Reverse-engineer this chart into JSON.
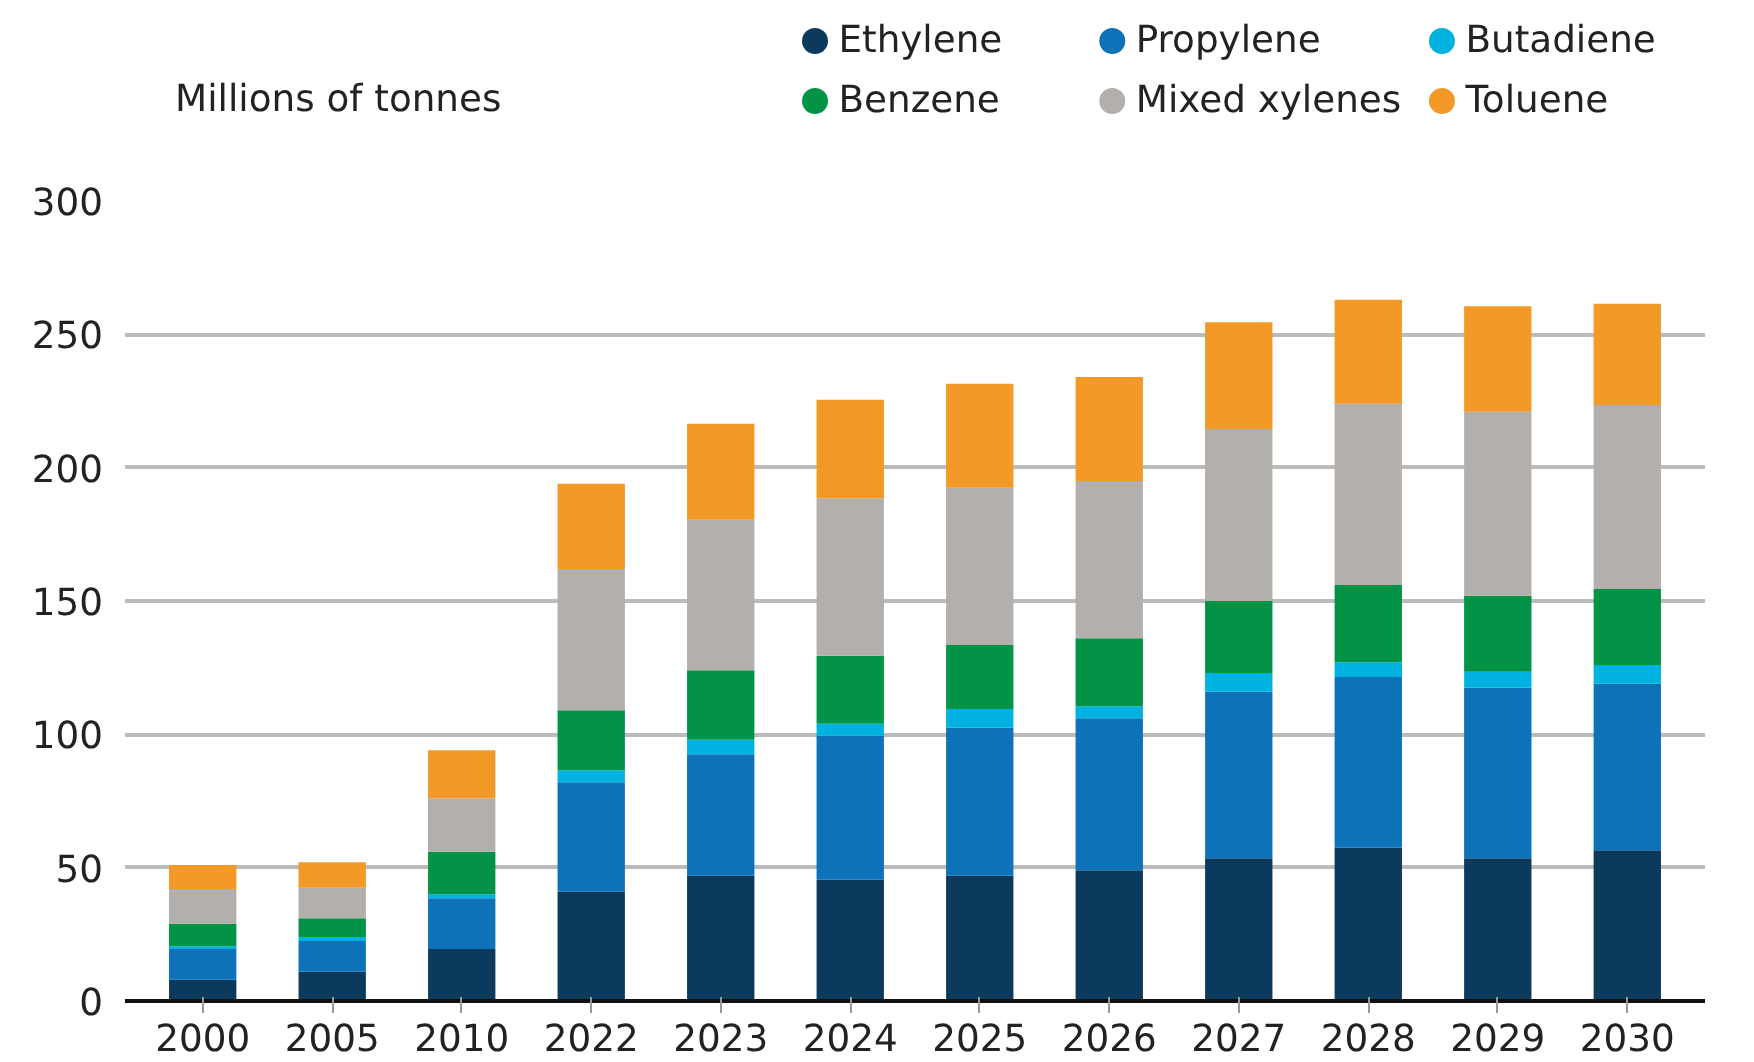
{
  "chart_data": {
    "type": "bar",
    "stacked": true,
    "ylabel": "Millions of tonnes",
    "categories": [
      "2000",
      "2005",
      "2010",
      "2022",
      "2023",
      "2024",
      "2025",
      "2026",
      "2027",
      "2028",
      "2029",
      "2030"
    ],
    "series": [
      {
        "name": "Ethylene",
        "color": "#0b3a5d",
        "values": [
          8,
          11,
          19.5,
          41,
          47,
          45.5,
          47,
          49,
          53.5,
          57.5,
          53.5,
          56.5
        ]
      },
      {
        "name": "Propylene",
        "color": "#0d72b8",
        "values": [
          11.5,
          11.5,
          19,
          41,
          45.5,
          54,
          55.5,
          57,
          62.5,
          64,
          64,
          62.5
        ]
      },
      {
        "name": "Butadiene",
        "color": "#00b2e0",
        "values": [
          1,
          1.5,
          1.5,
          4.5,
          5.5,
          4.5,
          7,
          4.5,
          7,
          5.5,
          6,
          7
        ]
      },
      {
        "name": "Benzene",
        "color": "#029347",
        "values": [
          8.5,
          7,
          16,
          22.5,
          26,
          25.5,
          24,
          25.5,
          27,
          29,
          28.5,
          28.5
        ]
      },
      {
        "name": "Mixed xylenes",
        "color": "#b3afac",
        "values": [
          13,
          11.5,
          20,
          53,
          56.5,
          59,
          59,
          59,
          64.5,
          68,
          69,
          69
        ]
      },
      {
        "name": "Toluene",
        "color": "#f29927",
        "values": [
          9,
          9.5,
          18,
          32,
          36,
          37,
          39,
          39,
          40,
          39,
          39.5,
          38
        ]
      }
    ],
    "ylim": [
      0,
      300
    ],
    "yticks": [
      0,
      50,
      100,
      150,
      200,
      250,
      300
    ],
    "grid": "y",
    "legend": "top right"
  }
}
